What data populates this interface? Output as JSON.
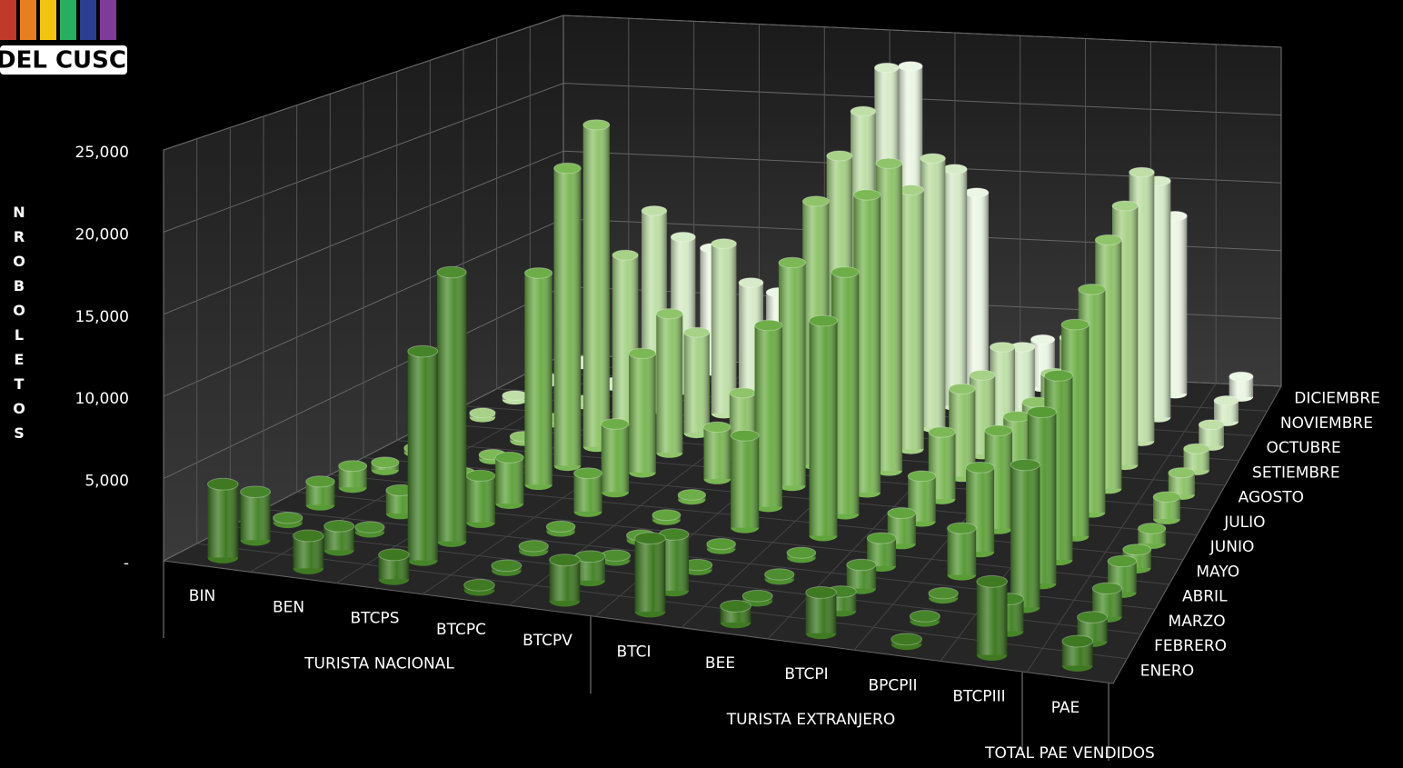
{
  "logo_text": "DEL CUSCO",
  "chart_data": {
    "type": "bar3d",
    "y_label": "NRO BOLETOS",
    "categories": [
      "BIN",
      "BEN",
      "BTCPS",
      "BTCPC",
      "BTCPV",
      "BTCI",
      "BEE",
      "BTCPI",
      "BPCPII",
      "BTCPIII",
      "PAE"
    ],
    "groups": [
      {
        "name": "TURISTA NACIONAL",
        "start": 0,
        "end": 4
      },
      {
        "name": "TURISTA EXTRANJERO",
        "start": 5,
        "end": 9
      },
      {
        "name": "TOTAL PAE VENDIDOS",
        "start": 10,
        "end": 10
      }
    ],
    "ylim": [
      0,
      25000
    ],
    "yticks": [
      {
        "value": 0,
        "label": "-"
      },
      {
        "value": 5000,
        "label": "5,000"
      },
      {
        "value": 10000,
        "label": "10,000"
      },
      {
        "value": 15000,
        "label": "15,000"
      },
      {
        "value": 20000,
        "label": "20,000"
      },
      {
        "value": 25000,
        "label": "25,000"
      }
    ],
    "grid": true,
    "series": [
      {
        "name": "ENERO",
        "color": "#3f7a22",
        "values": [
          4500,
          2000,
          1500,
          300,
          2500,
          4500,
          1000,
          2500,
          300,
          4500,
          1500
        ]
      },
      {
        "name": "FEBRERO",
        "color": "#46842a",
        "values": [
          3000,
          1500,
          13000,
          300,
          1500,
          3500,
          300,
          1200,
          300,
          2000,
          1500
        ]
      },
      {
        "name": "MARZO",
        "color": "#4e8e30",
        "values": [
          300,
          300,
          17000,
          300,
          300,
          300,
          300,
          1500,
          300,
          9000,
          1800
        ]
      },
      {
        "name": "ABRIL",
        "color": "#579a36",
        "values": [
          1500,
          1500,
          3000,
          300,
          300,
          300,
          300,
          1800,
          3000,
          11000,
          2000
        ]
      },
      {
        "name": "MAYO",
        "color": "#62a43e",
        "values": [
          1400,
          1200,
          3000,
          2500,
          300,
          6000,
          14000,
          2000,
          5500,
          12000,
          1200
        ]
      },
      {
        "name": "JUNIO",
        "color": "#6eae48",
        "values": [
          500,
          300,
          14000,
          4500,
          300,
          12000,
          16000,
          3000,
          6500,
          14000,
          1000
        ]
      },
      {
        "name": "JULIO",
        "color": "#7cb856",
        "values": [
          300,
          300,
          20000,
          8000,
          3500,
          15000,
          20000,
          4500,
          6000,
          15000,
          1500
        ]
      },
      {
        "name": "AGOSTO",
        "color": "#8fc46a",
        "values": [
          300,
          300,
          22000,
          9500,
          4500,
          18000,
          21000,
          6000,
          5500,
          17000,
          1500
        ]
      },
      {
        "name": "SETIEMBRE",
        "color": "#a6d186",
        "values": [
          300,
          300,
          12000,
          7000,
          5000,
          20000,
          18000,
          5500,
          6000,
          18000,
          1500
        ]
      },
      {
        "name": "OCTUBRE",
        "color": "#bfdfa7",
        "values": [
          300,
          300,
          14000,
          12000,
          6000,
          22000,
          19000,
          6000,
          7000,
          19000,
          1500
        ]
      },
      {
        "name": "NOVIEMBRE",
        "color": "#d6ebc7",
        "values": [
          300,
          300,
          11000,
          8000,
          3500,
          24000,
          17000,
          4500,
          5000,
          17000,
          1500
        ]
      },
      {
        "name": "DICIEMBRE",
        "color": "#ecf6e4",
        "values": [
          300,
          300,
          9000,
          6000,
          4000,
          23000,
          14000,
          3500,
          4500,
          13000,
          1500
        ]
      }
    ]
  }
}
